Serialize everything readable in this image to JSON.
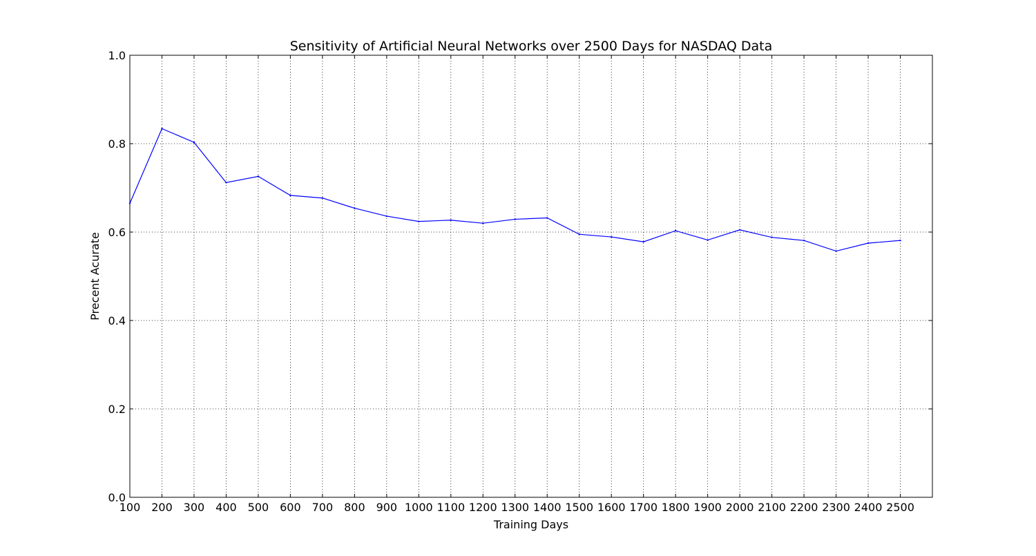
{
  "chart_data": {
    "type": "line",
    "title": "Sensitivity of Artificial Neural Networks over 2500 Days for NASDAQ Data",
    "xlabel": "Training Days",
    "ylabel": "Precent Acurate",
    "xlim": [
      100,
      2600
    ],
    "ylim": [
      0.0,
      1.0
    ],
    "grid": true,
    "line_color": "#0000ff",
    "x_ticks": [
      100,
      200,
      300,
      400,
      500,
      600,
      700,
      800,
      900,
      1000,
      1100,
      1200,
      1300,
      1400,
      1500,
      1600,
      1700,
      1800,
      1900,
      2000,
      2100,
      2200,
      2300,
      2400,
      2500
    ],
    "x_tick_labels": [
      "100",
      "200",
      "300",
      "400",
      "500",
      "600",
      "700",
      "800",
      "900",
      "1000",
      "1100",
      "1200",
      "1300",
      "1400",
      "1500",
      "1600",
      "1700",
      "1800",
      "1900",
      "2000",
      "2100",
      "2200",
      "2300",
      "2400",
      "2500"
    ],
    "y_ticks": [
      0.0,
      0.2,
      0.4,
      0.6,
      0.8,
      1.0
    ],
    "y_tick_labels": [
      "0.0",
      "0.2",
      "0.4",
      "0.6",
      "0.8",
      "1.0"
    ],
    "series": [
      {
        "x": [
          100,
          200,
          300,
          400,
          500,
          600,
          700,
          800,
          900,
          1000,
          1100,
          1200,
          1300,
          1400,
          1500,
          1600,
          1700,
          1800,
          1900,
          2000,
          2100,
          2200,
          2300,
          2400,
          2500
        ],
        "values": [
          0.665,
          0.834,
          0.803,
          0.712,
          0.726,
          0.683,
          0.677,
          0.654,
          0.636,
          0.624,
          0.627,
          0.62,
          0.629,
          0.632,
          0.595,
          0.589,
          0.578,
          0.603,
          0.582,
          0.605,
          0.588,
          0.581,
          0.557,
          0.575,
          0.581
        ]
      }
    ]
  }
}
